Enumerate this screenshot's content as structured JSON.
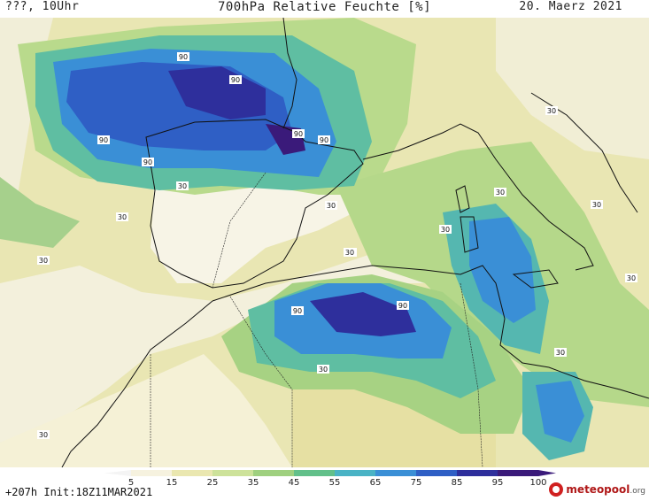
{
  "header": {
    "left": "???, 10Uhr",
    "title": "700hPa Relative Feuchte [%]",
    "right": "20. Maerz 2021"
  },
  "map": {
    "contour_labels": [
      "90",
      "90",
      "90",
      "90",
      "90",
      "90",
      "30",
      "30",
      "30",
      "30",
      "30",
      "30",
      "30",
      "30",
      "30",
      "90",
      "90",
      "30",
      "30",
      "30",
      "30",
      "30"
    ]
  },
  "colorbar": {
    "ticks": [
      "5",
      "15",
      "25",
      "35",
      "45",
      "55",
      "65",
      "75",
      "85",
      "95",
      "100"
    ],
    "colors": [
      "#ffffff",
      "#f6f2df",
      "#eae7b0",
      "#cde29a",
      "#9fd07f",
      "#62c08a",
      "#4ab3c5",
      "#3a8fd6",
      "#2f5fc5",
      "#2e2f9c",
      "#3a1a7a"
    ]
  },
  "footer": {
    "left": "+207h Init:18Z11MAR2021",
    "brand": "meteopool",
    "brand_suffix": ".org"
  }
}
